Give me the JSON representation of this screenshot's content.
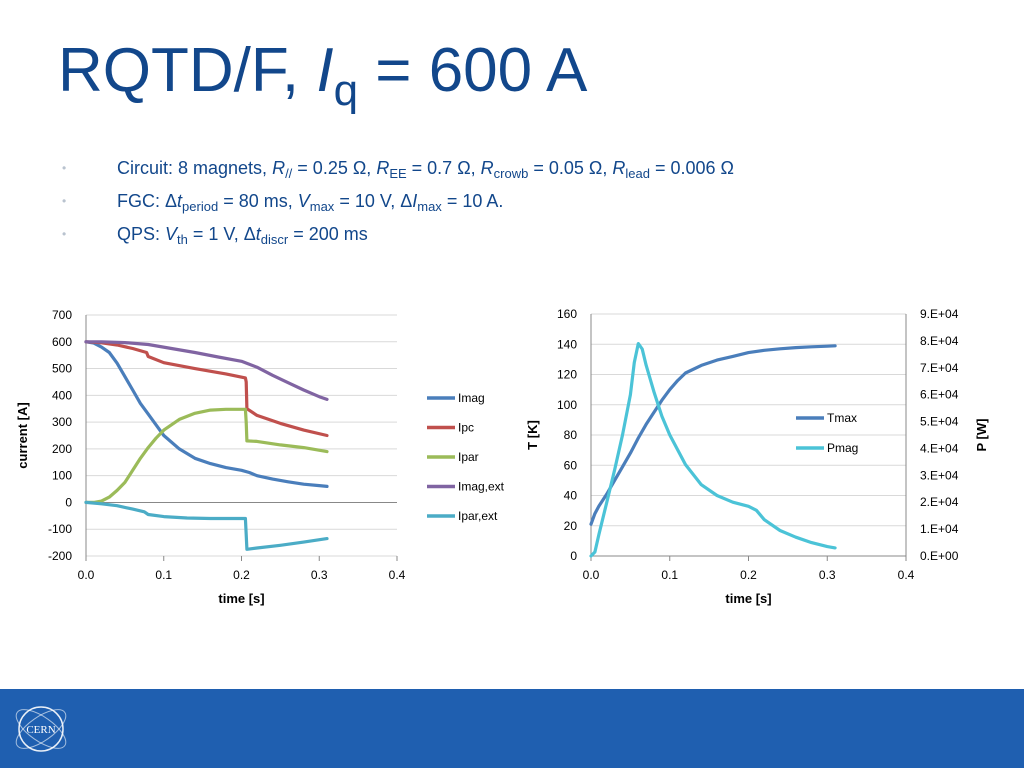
{
  "slide": {
    "title": {
      "main": "RQTD/F, ",
      "var": "I",
      "sub": "q",
      "rest": " = 600 A"
    },
    "bullets": [
      [
        {
          "t": "Circuit: 8 magnets, "
        },
        {
          "t": "R",
          "s": "i"
        },
        {
          "t": "//",
          "s": "sub"
        },
        {
          "t": " = 0.25 Ω, "
        },
        {
          "t": "R",
          "s": "i"
        },
        {
          "t": "EE",
          "s": "sub"
        },
        {
          "t": " = 0.7 Ω, "
        },
        {
          "t": "R",
          "s": "i"
        },
        {
          "t": "crowb",
          "s": "sub"
        },
        {
          "t": " = 0.05 Ω, "
        },
        {
          "t": "R",
          "s": "i"
        },
        {
          "t": "lead",
          "s": "sub"
        },
        {
          "t": " = 0.006 Ω"
        }
      ],
      [
        {
          "t": "FGC: Δ"
        },
        {
          "t": "t",
          "s": "i"
        },
        {
          "t": "period",
          "s": "sub"
        },
        {
          "t": " = 80 ms, "
        },
        {
          "t": "V",
          "s": "i"
        },
        {
          "t": "max",
          "s": "sub"
        },
        {
          "t": " = 10 V, Δ"
        },
        {
          "t": "I",
          "s": "i"
        },
        {
          "t": "max",
          "s": "sub"
        },
        {
          "t": " = 10 A."
        }
      ],
      [
        {
          "t": "QPS: "
        },
        {
          "t": "V",
          "s": "i"
        },
        {
          "t": "th",
          "s": "sub"
        },
        {
          "t": " = 1 V, Δ"
        },
        {
          "t": "t",
          "s": "i"
        },
        {
          "t": "discr",
          "s": "sub"
        },
        {
          "t": " = 200 ms"
        }
      ]
    ],
    "bullet_glyph": "•",
    "logo_text": "CERN",
    "colors": {
      "title": "#12478b",
      "footer": "#1f5fb0"
    }
  },
  "chart_data": [
    {
      "type": "line",
      "xlabel": "time [s]",
      "ylabel": "current [A]",
      "xlim": [
        0,
        0.4
      ],
      "ylim": [
        -200,
        700
      ],
      "xticks": [
        "0.0",
        "0.1",
        "0.2",
        "0.3",
        "0.4"
      ],
      "yticks": [
        "-200",
        "-100",
        "0",
        "100",
        "200",
        "300",
        "400",
        "500",
        "600",
        "700"
      ],
      "grid": true,
      "legend": "right",
      "series": [
        {
          "name": "Imag",
          "color": "#4a7ebb",
          "x": [
            0,
            0.01,
            0.02,
            0.03,
            0.04,
            0.05,
            0.06,
            0.07,
            0.08,
            0.09,
            0.1,
            0.12,
            0.14,
            0.16,
            0.18,
            0.2,
            0.21,
            0.22,
            0.24,
            0.26,
            0.28,
            0.3,
            0.31
          ],
          "y": [
            600,
            595,
            580,
            560,
            520,
            470,
            420,
            370,
            330,
            290,
            250,
            200,
            165,
            145,
            130,
            120,
            112,
            100,
            87,
            77,
            68,
            63,
            60
          ]
        },
        {
          "name": "Ipc",
          "color": "#c0504d",
          "x": [
            0,
            0.02,
            0.04,
            0.06,
            0.078,
            0.08,
            0.1,
            0.14,
            0.18,
            0.205,
            0.206,
            0.207,
            0.22,
            0.25,
            0.28,
            0.31
          ],
          "y": [
            600,
            596,
            588,
            575,
            560,
            545,
            522,
            500,
            480,
            465,
            450,
            350,
            325,
            295,
            270,
            250
          ]
        },
        {
          "name": "Ipar",
          "color": "#9bbb59",
          "x": [
            0,
            0.01,
            0.02,
            0.03,
            0.04,
            0.05,
            0.06,
            0.07,
            0.08,
            0.09,
            0.1,
            0.12,
            0.14,
            0.16,
            0.18,
            0.205,
            0.206,
            0.207,
            0.22,
            0.25,
            0.28,
            0.31
          ],
          "y": [
            0,
            0,
            5,
            20,
            45,
            75,
            120,
            165,
            205,
            240,
            270,
            310,
            333,
            345,
            348,
            348,
            300,
            230,
            228,
            215,
            205,
            190
          ]
        },
        {
          "name": "Imag,ext",
          "color": "#8064a2",
          "x": [
            0,
            0.02,
            0.05,
            0.08,
            0.11,
            0.14,
            0.17,
            0.2,
            0.22,
            0.24,
            0.26,
            0.28,
            0.3,
            0.31
          ],
          "y": [
            600,
            600,
            597,
            590,
            575,
            560,
            543,
            527,
            505,
            475,
            447,
            420,
            395,
            385
          ]
        },
        {
          "name": "Ipar,ext",
          "color": "#4bacc6",
          "x": [
            0,
            0.02,
            0.04,
            0.06,
            0.075,
            0.08,
            0.1,
            0.13,
            0.16,
            0.18,
            0.205,
            0.206,
            0.207,
            0.22,
            0.25,
            0.28,
            0.31
          ],
          "y": [
            0,
            -5,
            -12,
            -25,
            -35,
            -45,
            -53,
            -58,
            -60,
            -60,
            -60,
            -120,
            -175,
            -170,
            -160,
            -148,
            -135
          ]
        }
      ]
    },
    {
      "type": "line",
      "xlabel": "time [s]",
      "ylabel": "T [K]",
      "y2label": "P [W]",
      "xlim": [
        0,
        0.4
      ],
      "ylim": [
        0,
        160
      ],
      "y2lim": [
        0,
        90000
      ],
      "xticks": [
        "0.0",
        "0.1",
        "0.2",
        "0.3",
        "0.4"
      ],
      "yticks": [
        "0",
        "20",
        "40",
        "60",
        "80",
        "100",
        "120",
        "140",
        "160"
      ],
      "y2ticks": [
        "0.E+00",
        "1.E+04",
        "2.E+04",
        "3.E+04",
        "4.E+04",
        "5.E+04",
        "6.E+04",
        "7.E+04",
        "8.E+04",
        "9.E+04"
      ],
      "grid": true,
      "legend": "right",
      "series": [
        {
          "name": "Tmax",
          "color": "#4a7ebb",
          "axis": "left",
          "x": [
            0,
            0.005,
            0.01,
            0.02,
            0.03,
            0.04,
            0.05,
            0.06,
            0.07,
            0.08,
            0.09,
            0.1,
            0.11,
            0.12,
            0.14,
            0.16,
            0.18,
            0.2,
            0.22,
            0.24,
            0.26,
            0.28,
            0.3,
            0.31
          ],
          "y": [
            21,
            28,
            33,
            41,
            50,
            59,
            68,
            78,
            87,
            95,
            103,
            110,
            116,
            121,
            126,
            129.5,
            132,
            134.5,
            136,
            137,
            137.8,
            138.3,
            138.7,
            139
          ]
        },
        {
          "name": "Pmag",
          "color": "#4bc3d7",
          "axis": "right",
          "x": [
            0,
            0.005,
            0.01,
            0.02,
            0.03,
            0.04,
            0.05,
            0.055,
            0.06,
            0.065,
            0.07,
            0.08,
            0.09,
            0.1,
            0.12,
            0.14,
            0.16,
            0.18,
            0.2,
            0.21,
            0.22,
            0.24,
            0.26,
            0.28,
            0.3,
            0.31
          ],
          "y": [
            0,
            1500,
            8000,
            20000,
            32000,
            45000,
            60000,
            72000,
            79000,
            77000,
            71000,
            61000,
            52000,
            45000,
            34000,
            26500,
            22500,
            20000,
            18500,
            17000,
            13500,
            9500,
            7000,
            5000,
            3500,
            3000
          ]
        }
      ]
    }
  ]
}
